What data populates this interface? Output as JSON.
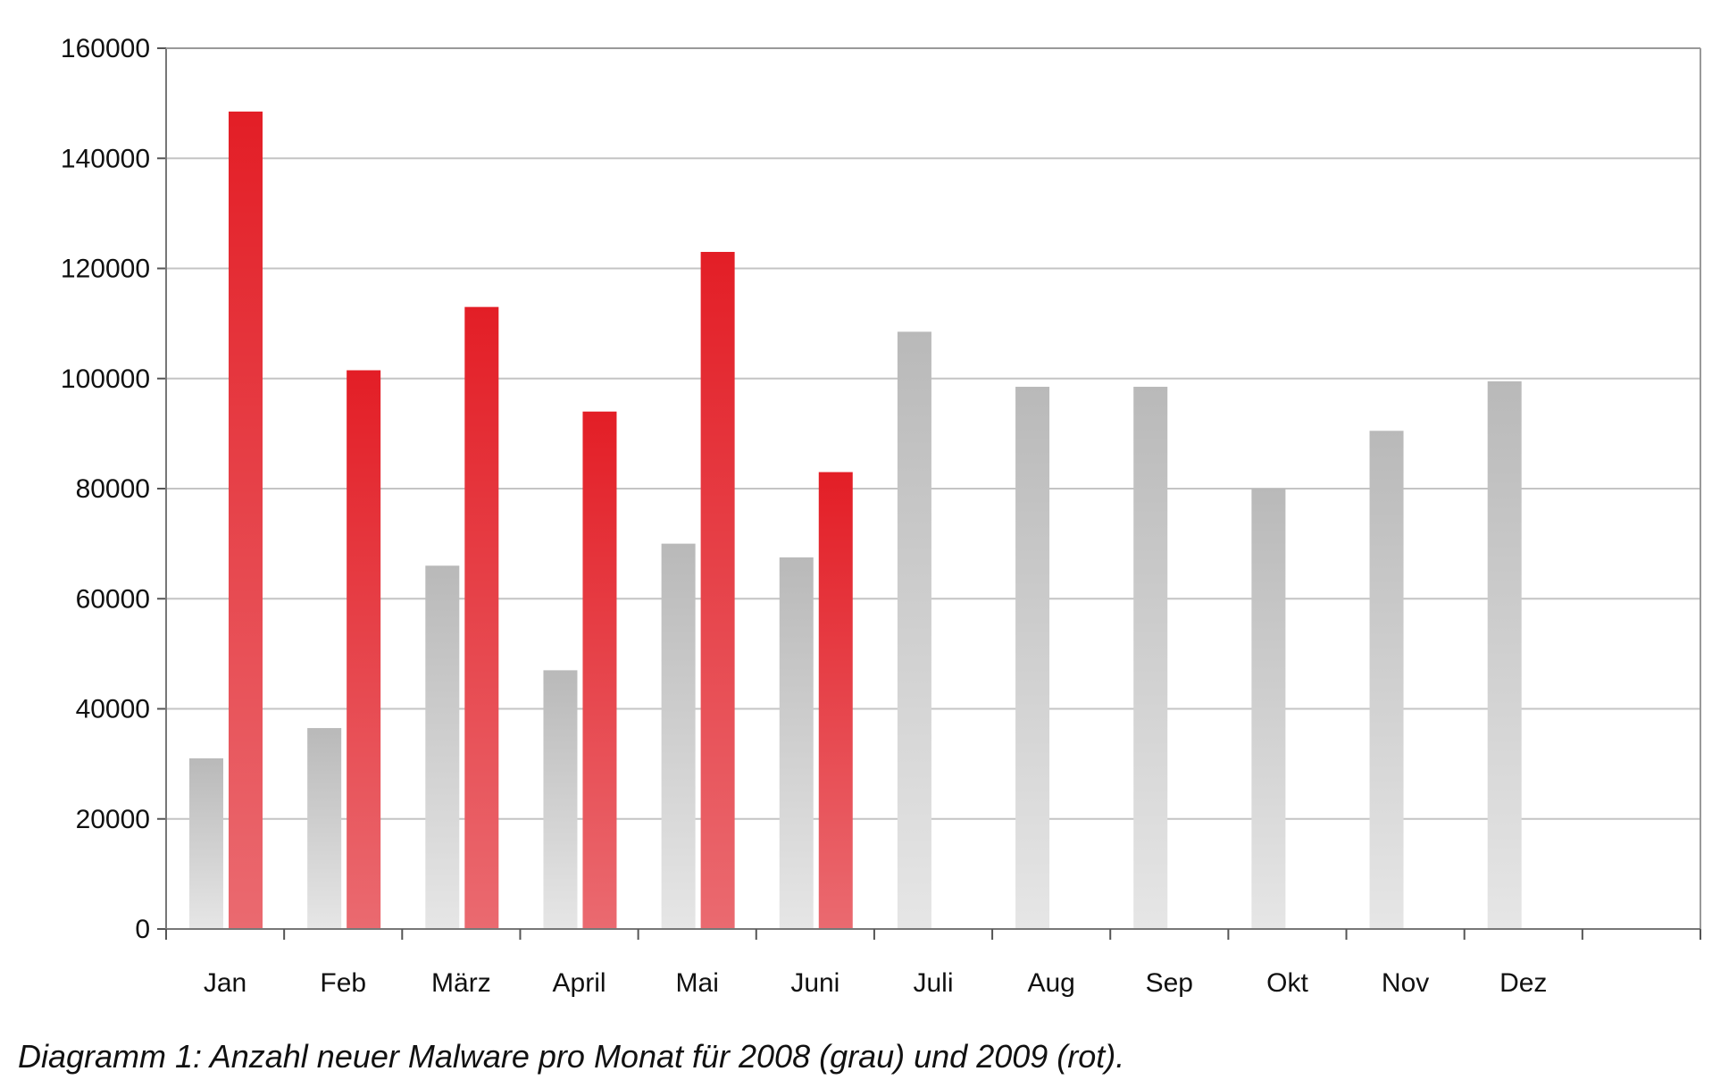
{
  "caption": "Diagramm 1: Anzahl neuer Malware pro Monat für 2008 (grau) und 2009 (rot).",
  "chart_data": {
    "type": "bar",
    "title": "",
    "xlabel": "",
    "ylabel": "",
    "ylim": [
      0,
      160000
    ],
    "yticks": [
      "0",
      "20000",
      "40000",
      "60000",
      "80000",
      "100000",
      "120000",
      "140000",
      "160000"
    ],
    "grid": true,
    "legend": "none",
    "categories": [
      "Jan",
      "Feb",
      "März",
      "April",
      "Mai",
      "Juni",
      "Juli",
      "Aug",
      "Sep",
      "Okt",
      "Nov",
      "Dez"
    ],
    "series": [
      {
        "year": "2008",
        "color": "#bdbdbd",
        "values": [
          31000,
          36500,
          66000,
          47000,
          70000,
          67500,
          108500,
          98500,
          98500,
          80000,
          90500,
          99500
        ]
      },
      {
        "year": "2009",
        "color": "#e31e26",
        "values": [
          148500,
          101500,
          113000,
          94000,
          123000,
          83000,
          null,
          null,
          null,
          null,
          null,
          null
        ]
      }
    ]
  }
}
